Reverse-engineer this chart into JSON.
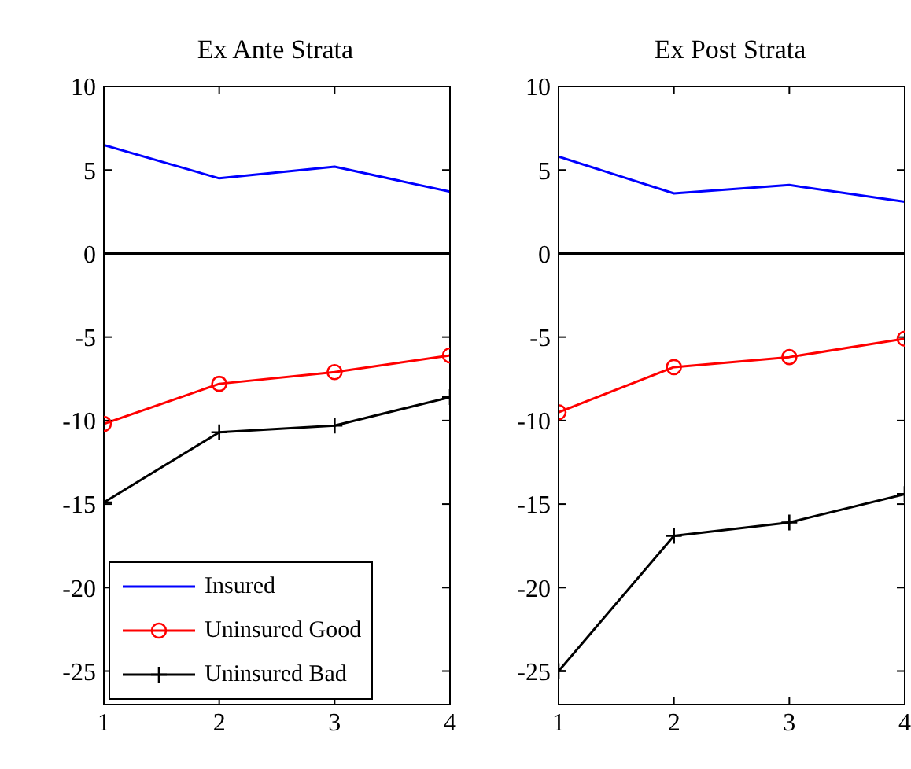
{
  "chart_data": [
    {
      "type": "line",
      "title": "Ex Ante Strata",
      "x": [
        1,
        2,
        3,
        4
      ],
      "xlim": [
        1,
        4
      ],
      "xticks": [
        1,
        2,
        3,
        4
      ],
      "ylim": [
        -27,
        10
      ],
      "yticks": [
        10,
        5,
        0,
        -5,
        -10,
        -15,
        -20,
        -25
      ],
      "legend": "bottom left",
      "ref_lines": [
        {
          "axis": "y",
          "value": 0,
          "color": "#000000"
        }
      ],
      "series": [
        {
          "name": "Insured",
          "color": "#0000ff",
          "marker": "none",
          "values": [
            6.5,
            4.5,
            5.2,
            3.7
          ]
        },
        {
          "name": "Uninsured Good",
          "color": "#ff0000",
          "marker": "circle",
          "values": [
            -10.2,
            -7.8,
            -7.1,
            -6.1
          ]
        },
        {
          "name": "Uninsured Bad",
          "color": "#000000",
          "marker": "cross",
          "values": [
            -14.9,
            -10.7,
            -10.3,
            -8.6
          ]
        }
      ]
    },
    {
      "type": "line",
      "title": "Ex Post Strata",
      "x": [
        1,
        2,
        3,
        4
      ],
      "xlim": [
        1,
        4
      ],
      "xticks": [
        1,
        2,
        3,
        4
      ],
      "ylim": [
        -27,
        10
      ],
      "yticks": [
        10,
        5,
        0,
        -5,
        -10,
        -15,
        -20,
        -25
      ],
      "legend": false,
      "ref_lines": [
        {
          "axis": "y",
          "value": 0,
          "color": "#000000"
        }
      ],
      "series": [
        {
          "color": "#0000ff",
          "marker": "none",
          "values": [
            5.8,
            3.6,
            4.1,
            3.1
          ]
        },
        {
          "color": "#ff0000",
          "marker": "circle",
          "values": [
            -9.5,
            -6.8,
            -6.2,
            -5.1
          ]
        },
        {
          "color": "#000000",
          "marker": "cross",
          "values": [
            -25,
            -16.9,
            -16.1,
            -14.4
          ]
        }
      ]
    }
  ]
}
